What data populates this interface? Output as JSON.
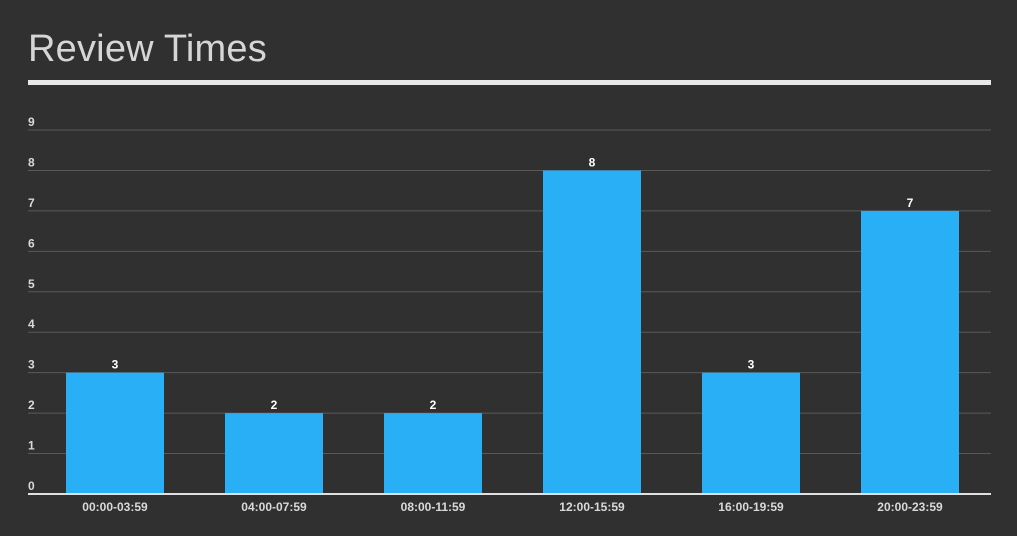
{
  "chart_data": {
    "type": "bar",
    "title": "Review Times",
    "categories": [
      "00:00-03:59",
      "04:00-07:59",
      "08:00-11:59",
      "12:00-15:59",
      "16:00-19:59",
      "20:00-23:59"
    ],
    "values": [
      3,
      2,
      2,
      8,
      3,
      7
    ],
    "ylim": [
      0,
      9
    ],
    "yticks": [
      "0",
      "1",
      "2",
      "3",
      "4",
      "5",
      "6",
      "7",
      "8",
      "9"
    ],
    "data_labels": [
      "3",
      "2",
      "2",
      "8",
      "3",
      "7"
    ],
    "grid": true,
    "bar_color": "#29aff6",
    "grid_color": "#595959",
    "axis_color": "#e0e0e0"
  }
}
